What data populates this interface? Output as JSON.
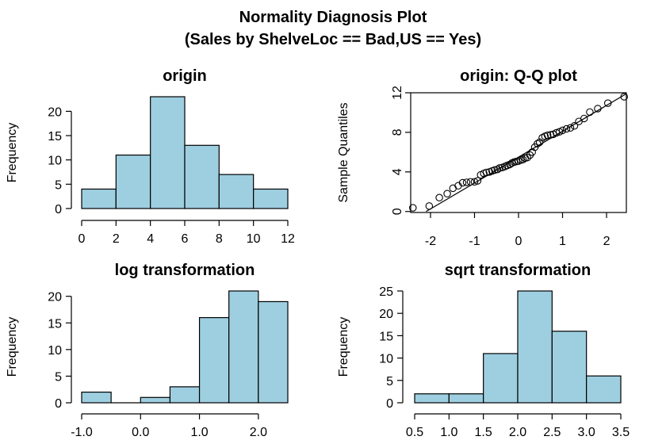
{
  "figure": {
    "title_line1": "Normality Diagnosis Plot",
    "title_line2": "(Sales by ShelveLoc == Bad,US == Yes)"
  },
  "colors": {
    "bar_fill": "#9ecfe0",
    "stroke": "#000000"
  },
  "chart_data": [
    {
      "id": "origin",
      "type": "bar",
      "title": "origin",
      "xlabel": "",
      "ylabel": "Frequency",
      "bins": [
        [
          0,
          2
        ],
        [
          2,
          4
        ],
        [
          4,
          6
        ],
        [
          6,
          8
        ],
        [
          8,
          10
        ],
        [
          10,
          12
        ]
      ],
      "values": [
        4,
        11,
        23,
        13,
        7,
        4
      ],
      "xlim": [
        0,
        12
      ],
      "ylim": [
        0,
        23
      ],
      "xticks": [
        0,
        2,
        4,
        6,
        8,
        10,
        12
      ],
      "xtick_labels": [
        "0",
        "2",
        "4",
        "6",
        "8",
        "10",
        "12"
      ],
      "yticks": [
        0,
        5,
        10,
        15,
        20
      ],
      "ytick_labels": [
        "0",
        "5",
        "10",
        "15",
        "20"
      ]
    },
    {
      "id": "qq",
      "type": "scatter",
      "title": "origin: Q-Q plot",
      "xlabel": "",
      "ylabel": "Sample Quantiles",
      "xlim": [
        -2.45,
        2.45
      ],
      "ylim": [
        -0.1,
        12.0
      ],
      "xticks": [
        -2,
        -1,
        0,
        1,
        2
      ],
      "xtick_labels": [
        "-2",
        "-1",
        "0",
        "1",
        "2"
      ],
      "yticks": [
        0,
        4,
        8,
        12
      ],
      "ytick_labels": [
        "0",
        "4",
        "8",
        "12"
      ],
      "reference_line": {
        "from": [
          -2.1,
          0.0
        ],
        "to": [
          2.45,
          11.9
        ]
      },
      "points": [
        [
          -2.4,
          0.37
        ],
        [
          -2.03,
          0.55
        ],
        [
          -1.8,
          1.4
        ],
        [
          -1.62,
          1.8
        ],
        [
          -1.49,
          2.35
        ],
        [
          -1.37,
          2.6
        ],
        [
          -1.27,
          2.9
        ],
        [
          -1.18,
          2.95
        ],
        [
          -1.09,
          3.0
        ],
        [
          -1.0,
          3.0
        ],
        [
          -0.93,
          3.1
        ],
        [
          -0.86,
          3.7
        ],
        [
          -0.79,
          3.85
        ],
        [
          -0.73,
          3.95
        ],
        [
          -0.66,
          4.0
        ],
        [
          -0.6,
          4.1
        ],
        [
          -0.54,
          4.2
        ],
        [
          -0.48,
          4.25
        ],
        [
          -0.43,
          4.4
        ],
        [
          -0.37,
          4.45
        ],
        [
          -0.31,
          4.55
        ],
        [
          -0.26,
          4.65
        ],
        [
          -0.2,
          4.75
        ],
        [
          -0.15,
          4.9
        ],
        [
          -0.1,
          5.0
        ],
        [
          -0.05,
          5.05
        ],
        [
          0.0,
          5.1
        ],
        [
          0.05,
          5.2
        ],
        [
          0.1,
          5.25
        ],
        [
          0.15,
          5.4
        ],
        [
          0.2,
          5.45
        ],
        [
          0.26,
          5.7
        ],
        [
          0.31,
          6.0
        ],
        [
          0.37,
          6.5
        ],
        [
          0.43,
          6.85
        ],
        [
          0.48,
          7.0
        ],
        [
          0.54,
          7.45
        ],
        [
          0.6,
          7.6
        ],
        [
          0.66,
          7.7
        ],
        [
          0.73,
          7.75
        ],
        [
          0.79,
          7.8
        ],
        [
          0.86,
          7.95
        ],
        [
          0.93,
          8.05
        ],
        [
          1.0,
          8.2
        ],
        [
          1.09,
          8.35
        ],
        [
          1.18,
          8.45
        ],
        [
          1.27,
          8.65
        ],
        [
          1.37,
          9.1
        ],
        [
          1.49,
          9.4
        ],
        [
          1.62,
          10.05
        ],
        [
          1.8,
          10.4
        ],
        [
          2.03,
          10.95
        ],
        [
          2.4,
          11.6
        ]
      ]
    },
    {
      "id": "log",
      "type": "bar",
      "title": "log transformation",
      "xlabel": "",
      "ylabel": "Frequency",
      "bins": [
        [
          -1.0,
          -0.5
        ],
        [
          -0.5,
          0.0
        ],
        [
          0.0,
          0.5
        ],
        [
          0.5,
          1.0
        ],
        [
          1.0,
          1.5
        ],
        [
          1.5,
          2.0
        ],
        [
          2.0,
          2.5
        ]
      ],
      "values": [
        2,
        0,
        1,
        3,
        16,
        21,
        19
      ],
      "xlim": [
        -1.0,
        2.5
      ],
      "ylim": [
        0,
        21
      ],
      "xticks": [
        -1.0,
        0.0,
        1.0,
        2.0
      ],
      "xtick_labels": [
        "-1.0",
        "0.0",
        "1.0",
        "2.0"
      ],
      "yticks": [
        0,
        5,
        10,
        15,
        20
      ],
      "ytick_labels": [
        "0",
        "5",
        "10",
        "15",
        "20"
      ]
    },
    {
      "id": "sqrt",
      "type": "bar",
      "title": "sqrt transformation",
      "xlabel": "",
      "ylabel": "Frequency",
      "bins": [
        [
          0.5,
          1.0
        ],
        [
          1.0,
          1.5
        ],
        [
          1.5,
          2.0
        ],
        [
          2.0,
          2.5
        ],
        [
          2.5,
          3.0
        ],
        [
          3.0,
          3.5
        ]
      ],
      "values": [
        2,
        2,
        11,
        25,
        16,
        6
      ],
      "xlim": [
        0.5,
        3.5
      ],
      "ylim": [
        0,
        25
      ],
      "xticks": [
        0.5,
        1.0,
        1.5,
        2.0,
        2.5,
        3.0,
        3.5
      ],
      "xtick_labels": [
        "0.5",
        "1.0",
        "1.5",
        "2.0",
        "2.5",
        "3.0",
        "3.5"
      ],
      "yticks": [
        0,
        5,
        10,
        15,
        20,
        25
      ],
      "ytick_labels": [
        "0",
        "5",
        "10",
        "15",
        "20",
        "25"
      ]
    }
  ]
}
